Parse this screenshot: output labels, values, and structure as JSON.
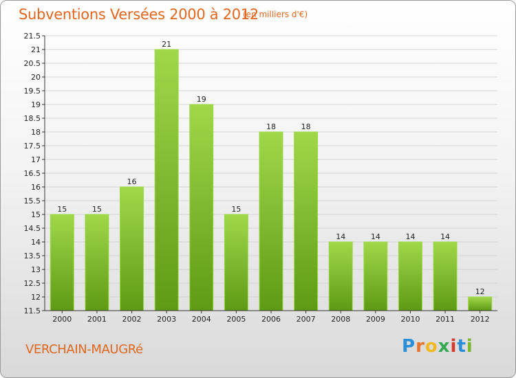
{
  "chart_data": {
    "type": "bar",
    "title": "Subventions Versées 2000 à 2012",
    "subtitle": "(en milliers d'€)",
    "categories": [
      "2000",
      "2001",
      "2002",
      "2003",
      "2004",
      "2005",
      "2006",
      "2007",
      "2008",
      "2009",
      "2010",
      "2011",
      "2012"
    ],
    "values": [
      15,
      15,
      16,
      21,
      19,
      15,
      18,
      18,
      14,
      14,
      14,
      14,
      12
    ],
    "data_labels": [
      "15",
      "15",
      "16",
      "21",
      "19",
      "15",
      "18",
      "18",
      "14",
      "14",
      "14",
      "14",
      "12"
    ],
    "ylim": [
      11.5,
      21.5
    ],
    "yticks": [
      "11.5",
      "12",
      "12.5",
      "13",
      "13.5",
      "14",
      "14.5",
      "15",
      "15.5",
      "16",
      "16.5",
      "17",
      "17.5",
      "18",
      "18.5",
      "19",
      "19.5",
      "20",
      "20.5",
      "21",
      "21.5"
    ],
    "grid": true,
    "bar_color": "#7ab929",
    "bar_color_light": "#9fd84a",
    "bar_color_dark": "#5e9a14"
  },
  "footer": {
    "place_name": "VERCHAIN-MAUGRé",
    "logo_text": "Proxiti",
    "logo_colors": [
      "#2a8fd8",
      "#e8732a",
      "#f2b91e",
      "#35a853",
      "#d9372b",
      "#2a8fd8",
      "#7ab929"
    ]
  },
  "colors": {
    "title": "#e0671f",
    "grid": "#d4d4d4",
    "axis": "#333333"
  }
}
